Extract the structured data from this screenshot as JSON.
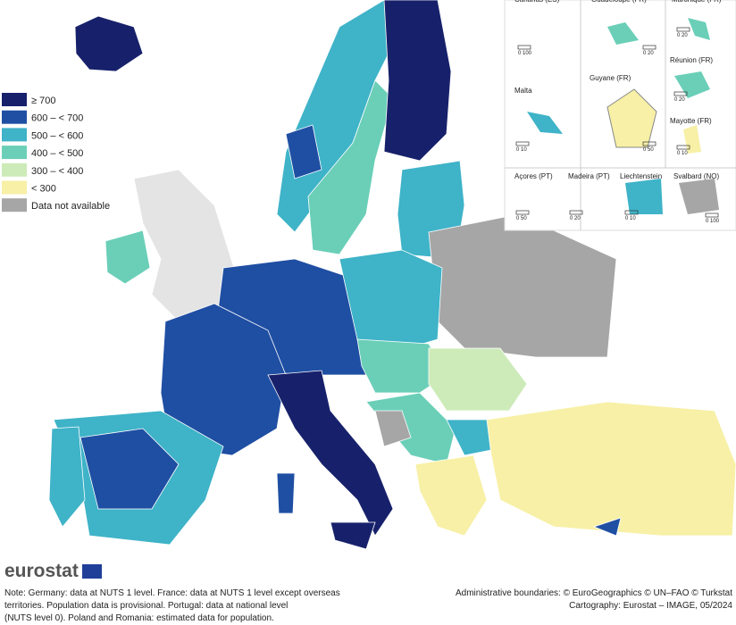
{
  "legend": {
    "items": [
      {
        "label": "≥ 700",
        "color": "#17216b"
      },
      {
        "label": "600 – < 700",
        "color": "#1f4fa3"
      },
      {
        "label": "500 – < 600",
        "color": "#3fb3c8"
      },
      {
        "label": "400 – < 500",
        "color": "#6bcfb8"
      },
      {
        "label": "300 – < 400",
        "color": "#cdebb9"
      },
      {
        "label": "< 300",
        "color": "#f7f0a6"
      },
      {
        "label": "Data not available",
        "color": "#a6a6a6"
      }
    ]
  },
  "insets": [
    {
      "label": "Canarias (ES)",
      "scale": "0   100"
    },
    {
      "label": "Guadeloupe (FR)",
      "scale": "0   20"
    },
    {
      "label": "Martinique (FR)",
      "scale": "0   20"
    },
    {
      "label": "Réunion (FR)",
      "scale": "0   20"
    },
    {
      "label": "Malta",
      "scale": "0   10"
    },
    {
      "label": "Guyane (FR)",
      "scale": "0   50"
    },
    {
      "label": "Mayotte (FR)",
      "scale": "0   10"
    },
    {
      "label": "Açores (PT)",
      "scale": "0   50"
    },
    {
      "label": "Madeira (PT)",
      "scale": "0   20"
    },
    {
      "label": "Liechtenstein",
      "scale": "0   10"
    },
    {
      "label": "Svalbard (NO)",
      "scale": "0   100"
    }
  ],
  "logo": "eurostat",
  "note": [
    "Note: Germany: data at NUTS 1 level. France: data at NUTS 1 level except overseas",
    "territories. Population data is provisional. Portugal: data at national level",
    "(NUTS level 0). Poland and Romania: estimated data for population."
  ],
  "credits": [
    "Administrative boundaries: © EuroGeographics © UN–FAO © Turkstat",
    "Cartography: Eurostat – IMAGE, 05/2024"
  ]
}
